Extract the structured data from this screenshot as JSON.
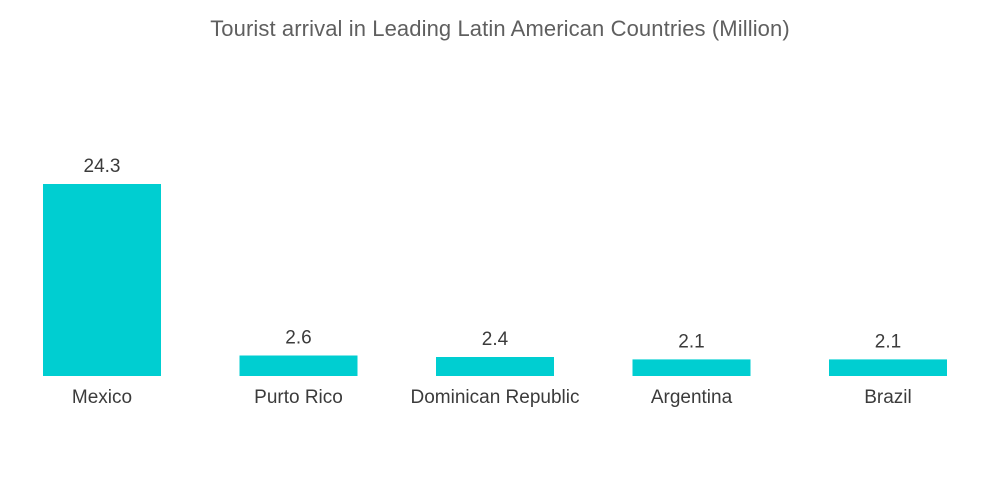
{
  "chart_data": {
    "type": "bar",
    "title": "Tourist arrival in Leading Latin American Countries (Million)",
    "categories": [
      "Mexico",
      "Purto Rico",
      "Dominican Republic",
      "Argentina",
      "Brazil"
    ],
    "values": [
      24.3,
      2.6,
      2.4,
      2.1,
      2.1
    ],
    "data_labels": [
      "24.3",
      "2.6",
      "2.4",
      "2.1",
      "2.1"
    ],
    "xlabel": "",
    "ylabel": "",
    "ylim": [
      0,
      24.3
    ],
    "grid": false,
    "legend": "none",
    "bar_color": "#00CED1"
  }
}
